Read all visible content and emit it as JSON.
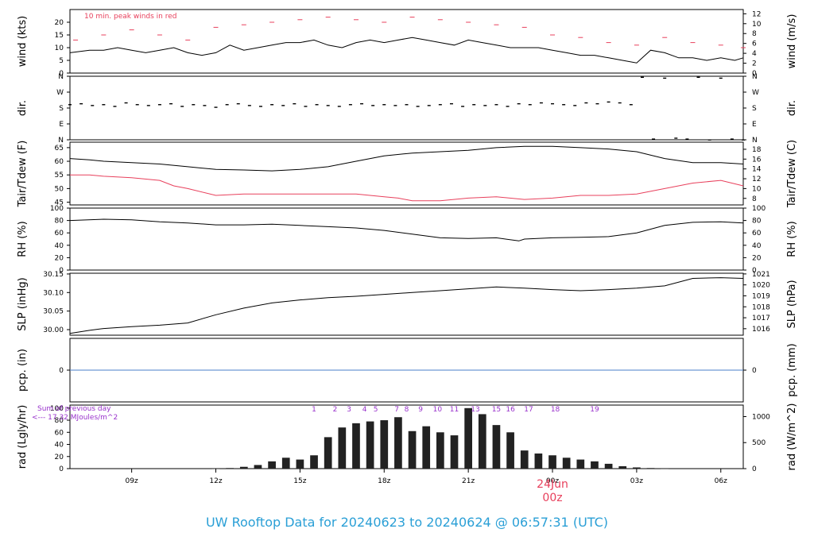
{
  "title": "UW Rooftop Data for 20240623  to  20240624 @ 06:57:31  (UTC)",
  "colors": {
    "series": "#000000",
    "highlight": "#e8405c",
    "precip_line": "#4a7fc8",
    "solar_labels": "#9933cc",
    "footer": "#2a9fd6",
    "frame": "#000000"
  },
  "chart_data": [
    {
      "type": "line",
      "id": "wind",
      "ylabel_left": "wind (kts)",
      "ylabel_right": "wind (m/s)",
      "ylim": [
        0,
        25
      ],
      "yticks_left": [
        0,
        5,
        10,
        15,
        20
      ],
      "yticks_right": [
        0,
        2,
        4,
        6,
        8,
        10,
        12
      ],
      "right_scale": 0.5144,
      "annotation": "10 min. peak winds in red",
      "series": [
        {
          "name": "wind speed",
          "color": "#000000",
          "style": "line",
          "x": [
            6.8,
            7.5,
            8,
            8.5,
            9,
            9.5,
            10,
            10.5,
            11,
            11.5,
            12,
            12.5,
            13,
            13.5,
            14,
            14.5,
            15,
            15.5,
            16,
            16.5,
            17,
            17.5,
            18,
            18.5,
            19,
            19.5,
            20,
            20.5,
            21,
            21.5,
            22,
            22.5,
            23,
            23.5,
            24,
            24.5,
            25,
            25.5,
            26,
            26.5,
            27,
            27.5,
            28,
            28.5,
            29,
            29.5,
            30,
            30.5,
            30.8
          ],
          "y": [
            8,
            9,
            9,
            10,
            9,
            8,
            9,
            10,
            8,
            7,
            8,
            11,
            9,
            10,
            11,
            12,
            12,
            13,
            11,
            10,
            12,
            13,
            12,
            13,
            14,
            13,
            12,
            11,
            13,
            12,
            11,
            10,
            10,
            10,
            9,
            8,
            7,
            7,
            6,
            5,
            4,
            9,
            8,
            6,
            6,
            5,
            6,
            5,
            6
          ]
        },
        {
          "name": "10 min. peak winds",
          "color": "#e8405c",
          "style": "dash",
          "x": [
            7,
            8,
            9,
            10,
            11,
            12,
            13,
            14,
            15,
            16,
            17,
            18,
            19,
            20,
            21,
            22,
            23,
            24,
            25,
            26,
            27,
            28,
            29,
            30,
            30.8
          ],
          "y": [
            13,
            15,
            17,
            15,
            13,
            18,
            19,
            20,
            21,
            22,
            21,
            20,
            22,
            21,
            20,
            19,
            18,
            15,
            14,
            12,
            11,
            14,
            12,
            11,
            10
          ]
        }
      ]
    },
    {
      "type": "scatter",
      "id": "dir",
      "ylabel_left": "dir.",
      "ylabel_right": "dir.",
      "ylim": [
        0,
        360
      ],
      "yticks_labels": [
        "N",
        "E",
        "S",
        "W",
        "N"
      ],
      "yticks_values": [
        0,
        90,
        180,
        270,
        360
      ],
      "series": [
        {
          "name": "wind direction",
          "color": "#000000",
          "x": [
            6.8,
            7.2,
            7.6,
            8,
            8.4,
            8.8,
            9.2,
            9.6,
            10,
            10.4,
            10.8,
            11.2,
            11.6,
            12,
            12.4,
            12.8,
            13.2,
            13.6,
            14,
            14.4,
            14.8,
            15.2,
            15.6,
            16,
            16.4,
            16.8,
            17.2,
            17.6,
            18,
            18.4,
            18.8,
            19.2,
            19.6,
            20,
            20.4,
            20.8,
            21.2,
            21.6,
            22,
            22.4,
            22.8,
            23.2,
            23.6,
            24,
            24.4,
            24.8,
            25.2,
            25.6,
            26,
            26.4,
            26.8,
            27.2,
            27.6,
            28,
            28.4,
            28.8,
            29.2,
            29.6,
            30,
            30.4,
            30.8
          ],
          "y": [
            200,
            205,
            195,
            200,
            190,
            210,
            200,
            195,
            200,
            205,
            190,
            200,
            195,
            185,
            200,
            205,
            195,
            190,
            200,
            195,
            205,
            190,
            200,
            195,
            190,
            200,
            205,
            195,
            200,
            195,
            200,
            190,
            195,
            200,
            205,
            190,
            200,
            195,
            200,
            190,
            205,
            200,
            210,
            205,
            200,
            195,
            210,
            205,
            215,
            210,
            200,
            355,
            5,
            350,
            10,
            5,
            355,
            0,
            350,
            5,
            0
          ]
        }
      ]
    },
    {
      "type": "line",
      "id": "temp",
      "ylabel_left": "Tair/Tdew (F)",
      "ylabel_right": "Tair/Tdew (C)",
      "ylim": [
        44,
        67
      ],
      "yticks_left": [
        45,
        50,
        55,
        60,
        65
      ],
      "yticks_right": [
        8,
        10,
        12,
        14,
        16,
        18
      ],
      "series": [
        {
          "name": "Tair",
          "color": "#000000",
          "x": [
            6.8,
            7.5,
            8,
            9,
            10,
            11,
            12,
            13,
            14,
            15,
            16,
            17,
            18,
            19,
            20,
            21,
            22,
            23,
            24,
            25,
            26,
            27,
            28,
            29,
            30,
            30.8
          ],
          "y": [
            61,
            60.5,
            60,
            59.5,
            59,
            58,
            57,
            56.8,
            56.5,
            57,
            58,
            60,
            62,
            63,
            63.5,
            64,
            65,
            65.5,
            65.5,
            65,
            64.5,
            63.5,
            61,
            59.5,
            59.5,
            59
          ]
        },
        {
          "name": "Tdew",
          "color": "#e8405c",
          "x": [
            6.8,
            7.5,
            8,
            9,
            10,
            10.5,
            11,
            12,
            13,
            14,
            15,
            16,
            17,
            18,
            18.5,
            19,
            20,
            21,
            22,
            23,
            24,
            25,
            26,
            27,
            28,
            29,
            30,
            30.8
          ],
          "y": [
            55,
            55,
            54.5,
            54,
            53,
            51,
            50,
            47.5,
            48,
            48,
            48,
            48,
            48,
            47,
            46.5,
            45.5,
            45.5,
            46.5,
            47,
            46,
            46.5,
            47.5,
            47.5,
            48,
            50,
            52,
            53,
            51
          ]
        }
      ]
    },
    {
      "type": "line",
      "id": "rh",
      "ylabel_left": "RH (%)",
      "ylabel_right": "RH (%)",
      "ylim": [
        0,
        100
      ],
      "yticks_left": [
        0,
        20,
        40,
        60,
        80,
        100
      ],
      "yticks_right": [
        0,
        20,
        40,
        60,
        80,
        100
      ],
      "series": [
        {
          "name": "RH",
          "color": "#000000",
          "x": [
            6.8,
            8,
            9,
            10,
            11,
            12,
            13,
            14,
            15,
            16,
            17,
            18,
            19,
            20,
            21,
            22,
            22.8,
            23,
            24,
            25,
            26,
            27,
            28,
            29,
            30,
            30.8
          ],
          "y": [
            80,
            82,
            81,
            78,
            76,
            73,
            73,
            74,
            72,
            70,
            68,
            64,
            58,
            52,
            51,
            52,
            47,
            50,
            52,
            53,
            54,
            60,
            72,
            77,
            78,
            76
          ]
        }
      ]
    },
    {
      "type": "line",
      "id": "slp",
      "ylabel_left": "SLP (inHg)",
      "ylabel_right": "SLP (hPa)",
      "ylim": [
        29.985,
        30.152
      ],
      "yticks_left": [
        30.0,
        30.05,
        30.1,
        30.15
      ],
      "yticks_left_labels": [
        "30.00",
        "30.05",
        "30.10",
        "30.15"
      ],
      "yticks_right": [
        1016,
        1017,
        1018,
        1019,
        1020,
        1021
      ],
      "series": [
        {
          "name": "SLP",
          "color": "#000000",
          "x": [
            6.8,
            7.5,
            8,
            9,
            10,
            11,
            12,
            13,
            14,
            15,
            16,
            17,
            18,
            19,
            20,
            21,
            22,
            23,
            24,
            25,
            26,
            27,
            28,
            29,
            30,
            30.8
          ],
          "y": [
            29.99,
            29.998,
            30.003,
            30.008,
            30.012,
            30.018,
            30.04,
            30.058,
            30.072,
            30.08,
            30.086,
            30.09,
            30.095,
            30.1,
            30.105,
            30.11,
            30.115,
            30.112,
            30.108,
            30.105,
            30.108,
            30.112,
            30.118,
            30.138,
            30.14,
            30.138
          ]
        }
      ]
    },
    {
      "type": "line",
      "id": "pcp",
      "ylabel_left": "pcp. (in)",
      "ylabel_right": "pcp. (mm)",
      "ylim": [
        -1,
        1
      ],
      "yticks_left": [
        0
      ],
      "yticks_right": [
        0
      ],
      "series": [
        {
          "name": "precipitation",
          "color": "#4a7fc8",
          "x": [
            6.8,
            30.8
          ],
          "y": [
            0,
            0
          ]
        }
      ]
    },
    {
      "type": "bar",
      "id": "rad",
      "ylabel_left": "rad (Lgly/hr)",
      "ylabel_right": "rad (W/m^2)",
      "ylim": [
        0,
        105
      ],
      "yticks_left": [
        0,
        20,
        40,
        60,
        80,
        100
      ],
      "yticks_right": [
        0,
        500,
        1000
      ],
      "right_scale": 11.63,
      "note_lines": [
        "Sum of previous day",
        "<--- 17.32 MJoules/m^2"
      ],
      "solar_hour_labels": [
        {
          "x": 15.5,
          "label": "1"
        },
        {
          "x": 16.25,
          "label": "2"
        },
        {
          "x": 16.75,
          "label": "3"
        },
        {
          "x": 17.3,
          "label": "4"
        },
        {
          "x": 17.7,
          "label": "5"
        },
        {
          "x": 18.45,
          "label": "7"
        },
        {
          "x": 18.8,
          "label": "8"
        },
        {
          "x": 19.3,
          "label": "9"
        },
        {
          "x": 19.9,
          "label": "10"
        },
        {
          "x": 20.5,
          "label": "11"
        },
        {
          "x": 21.25,
          "label": "13"
        },
        {
          "x": 22,
          "label": "15"
        },
        {
          "x": 22.5,
          "label": "16"
        },
        {
          "x": 23.15,
          "label": "17"
        },
        {
          "x": 24.1,
          "label": "18"
        },
        {
          "x": 25.5,
          "label": "19"
        }
      ],
      "x": [
        12,
        12.5,
        13,
        13.5,
        14,
        14.5,
        15,
        15.5,
        16,
        16.5,
        17,
        17.5,
        18,
        18.5,
        19,
        19.5,
        20,
        20.5,
        21,
        21.5,
        22,
        22.5,
        23,
        23.5,
        24,
        24.5,
        25,
        25.5,
        26,
        26.5,
        27,
        27.5,
        28
      ],
      "values": [
        0,
        1,
        3,
        6,
        12,
        18,
        15,
        22,
        52,
        68,
        75,
        78,
        80,
        85,
        62,
        70,
        60,
        55,
        100,
        90,
        72,
        60,
        30,
        25,
        22,
        18,
        15,
        12,
        8,
        4,
        2,
        1,
        0
      ]
    }
  ],
  "x_axis": {
    "xlim": [
      6.8,
      30.8
    ],
    "ticks": [
      {
        "x": 9,
        "label": "09z"
      },
      {
        "x": 12,
        "label": "12z"
      },
      {
        "x": 15,
        "label": "15z"
      },
      {
        "x": 18,
        "label": "18z"
      },
      {
        "x": 21,
        "label": "21z"
      },
      {
        "x": 24,
        "label": "00z"
      },
      {
        "x": 27,
        "label": "03z"
      },
      {
        "x": 30,
        "label": "06z"
      }
    ],
    "date_label": "24Jun",
    "date_sublabel": "00z"
  }
}
